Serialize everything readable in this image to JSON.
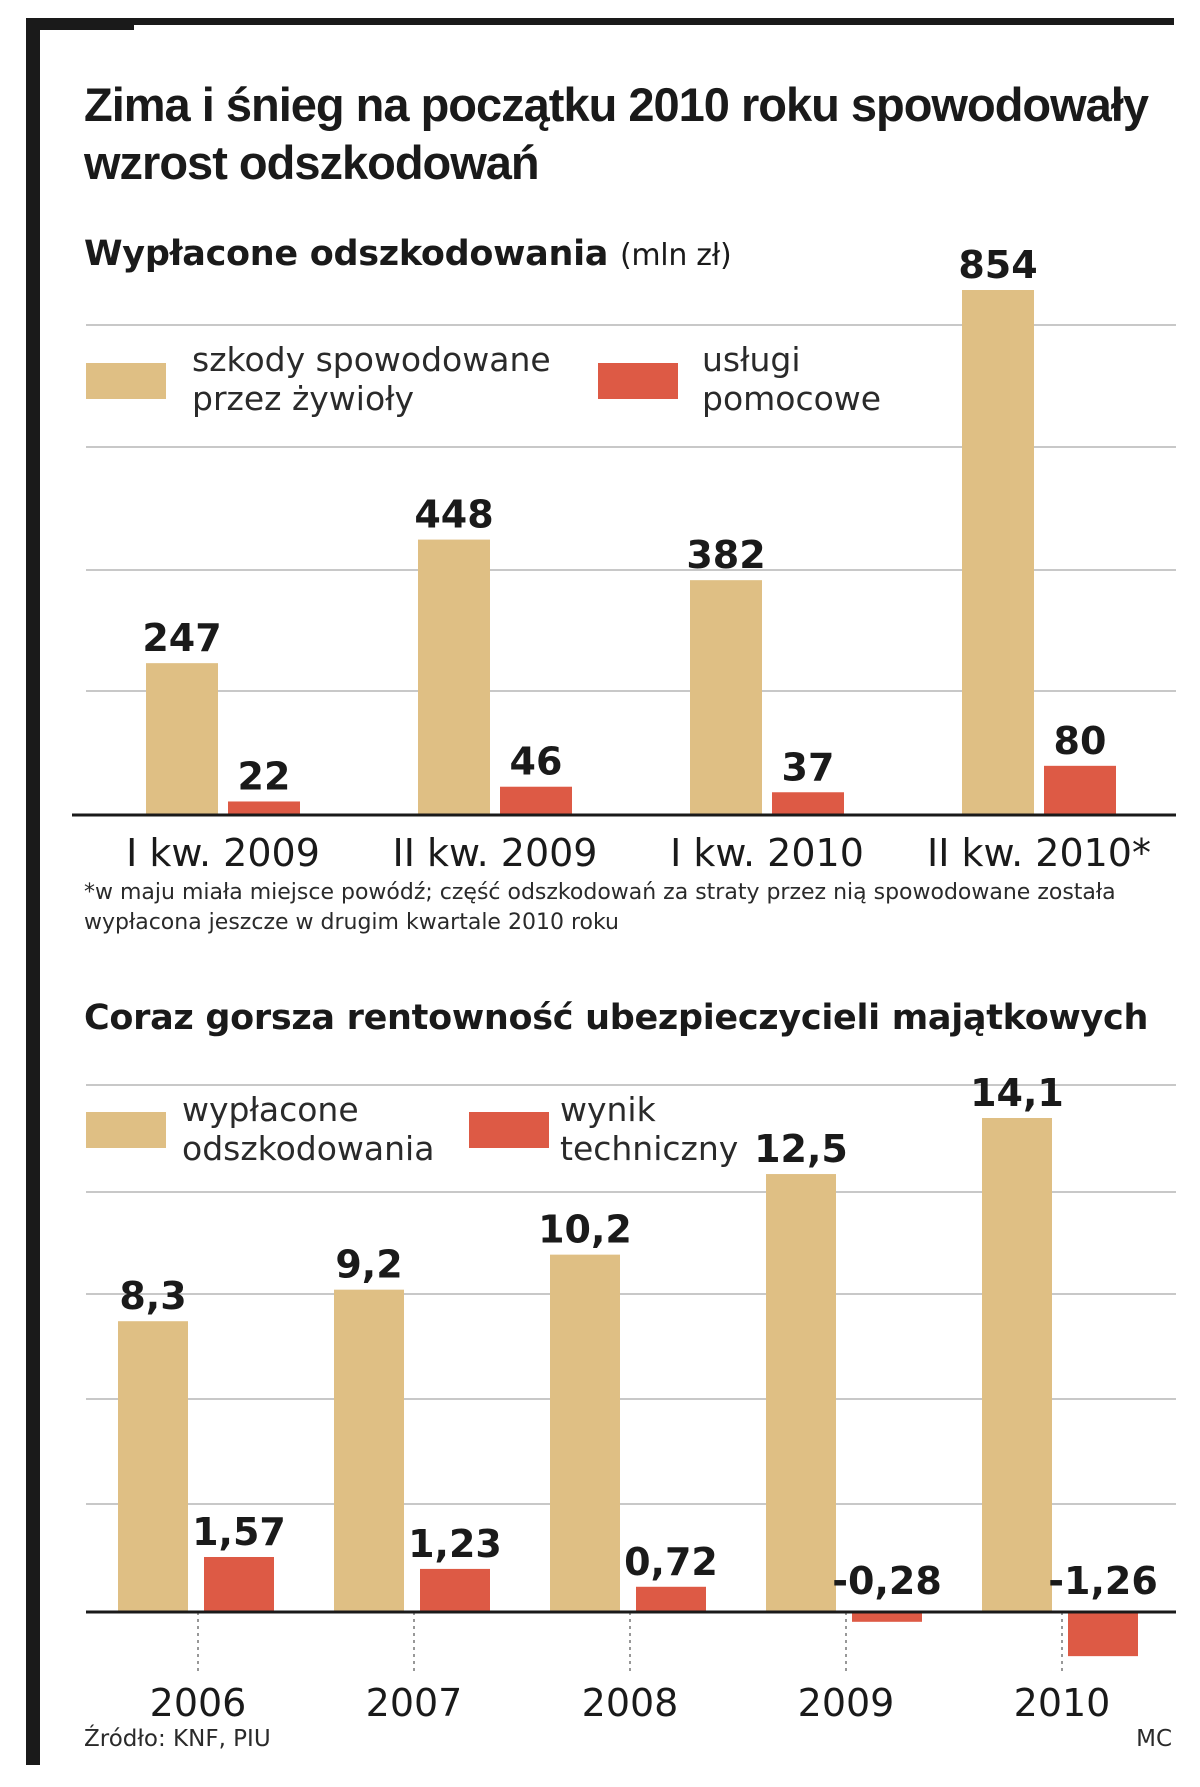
{
  "title": "Zima i śnieg na początku 2010 roku spowodowały wzrost odszkodowań",
  "colors": {
    "tan": "#dfbf84",
    "red": "#dd5a45",
    "grid": "#b5b5b5",
    "axis": "#1a1a1a"
  },
  "chart_data": [
    {
      "type": "bar",
      "title": "Wypłacone odszkodowania",
      "unit": "(mln zł)",
      "categories": [
        "I kw. 2009",
        "II kw. 2009",
        "I kw. 2010",
        "II kw. 2010*"
      ],
      "series": [
        {
          "name": "szkody spowodowane\nprzez żywioły",
          "values": [
            247,
            448,
            382,
            854
          ],
          "labels": [
            "247",
            "448",
            "382",
            "854"
          ]
        },
        {
          "name": "usługi\npomocowe",
          "values": [
            22,
            46,
            37,
            80
          ],
          "labels": [
            "22",
            "46",
            "37",
            "80"
          ]
        }
      ],
      "ylim": [
        0,
        854
      ],
      "grid": true,
      "footnote": "*w maju miała miejsce powódź; część odszkodowań za straty przez nią spowodowane została wypłacona jeszcze w drugim kwartale 2010 roku"
    },
    {
      "type": "bar",
      "title": "Coraz gorsza rentowność ubezpieczycieli majątkowych",
      "categories": [
        "2006",
        "2007",
        "2008",
        "2009",
        "2010"
      ],
      "series": [
        {
          "name": "wypłacone\nodszkodowania",
          "values": [
            8.3,
            9.2,
            10.2,
            12.5,
            14.1
          ],
          "labels": [
            "8,3",
            "9,2",
            "10,2",
            "12,5",
            "14,1"
          ]
        },
        {
          "name": "wynik\ntechniczny",
          "values": [
            1.57,
            1.23,
            0.72,
            -0.28,
            -1.26
          ],
          "labels": [
            "1,57",
            "1,23",
            "0,72",
            "-0,28",
            "-1,26"
          ]
        }
      ],
      "ylim": [
        -1.26,
        14.1
      ],
      "grid": true
    }
  ],
  "source": "Źródło: KNF, PIU",
  "credit": "MC"
}
